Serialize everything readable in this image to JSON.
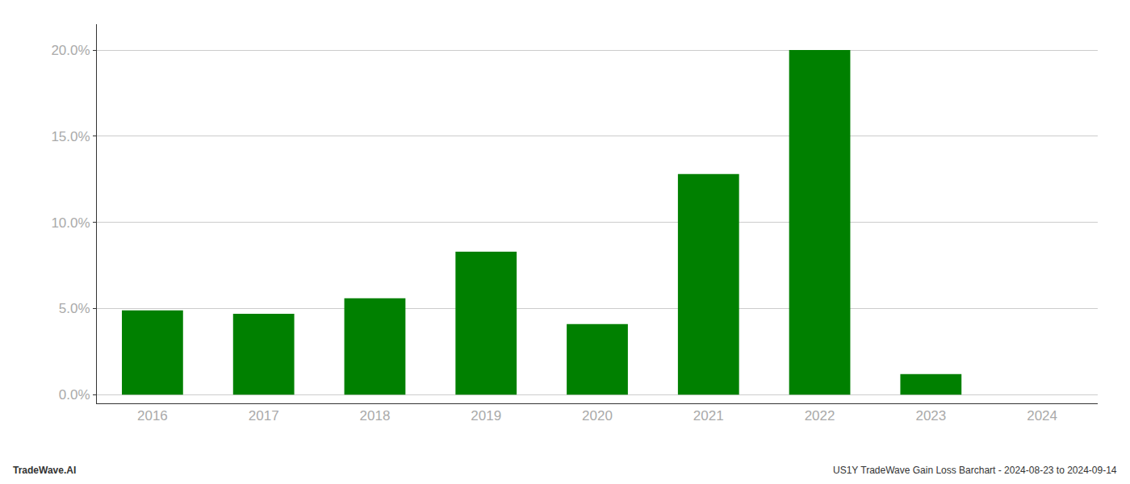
{
  "chart_data": {
    "type": "bar",
    "categories": [
      "2016",
      "2017",
      "2018",
      "2019",
      "2020",
      "2021",
      "2022",
      "2023",
      "2024"
    ],
    "values": [
      0.049,
      0.047,
      0.056,
      0.083,
      0.041,
      0.128,
      0.2,
      0.012,
      0.0
    ],
    "color": "#008000",
    "ylim": [
      -0.005,
      0.215
    ],
    "yticks": [
      {
        "value": 0.0,
        "label": "0.0%"
      },
      {
        "value": 0.05,
        "label": "5.0%"
      },
      {
        "value": 0.1,
        "label": "10.0%"
      },
      {
        "value": 0.15,
        "label": "15.0%"
      },
      {
        "value": 0.2,
        "label": "20.0%"
      }
    ],
    "grid": true,
    "annotations": [
      "TradeWave.AI",
      "US1Y TradeWave Gain Loss Barchart - 2024-08-23 to 2024-09-14"
    ]
  }
}
